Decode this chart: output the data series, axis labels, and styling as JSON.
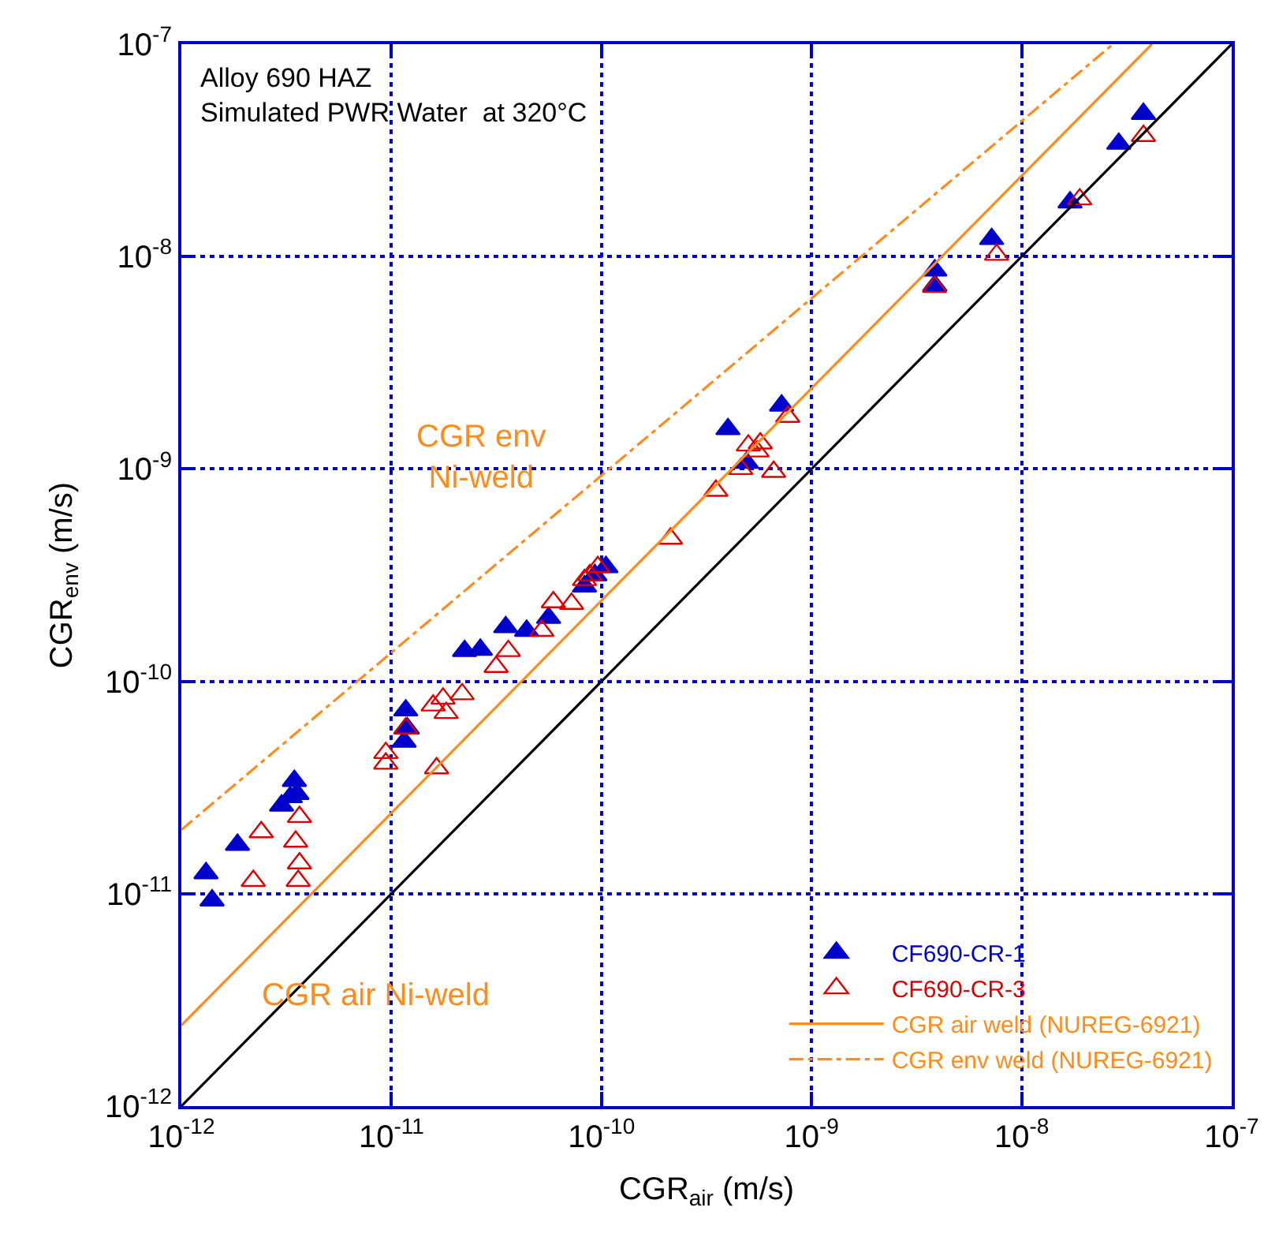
{
  "chart_data": {
    "type": "scatter",
    "xlabel": "CGR$_{air}$ (m/s)",
    "ylabel": "CGR$_{env}$ (m/s)",
    "log": "xy",
    "xlim": [
      1e-12,
      1e-07
    ],
    "ylim": [
      1e-12,
      1e-07
    ],
    "xticks": [
      {
        "value": 1e-12,
        "label": "10$^{-12}$"
      },
      {
        "value": 1e-11,
        "label": "10$^{-11}$"
      },
      {
        "value": 1e-10,
        "label": "10$^{-10}$"
      },
      {
        "value": 1e-09,
        "label": "10$^{-9}$"
      },
      {
        "value": 1e-08,
        "label": "10$^{-8}$"
      },
      {
        "value": 1e-07,
        "label": "10$^{-7}$"
      }
    ],
    "yticks": [
      {
        "value": 1e-12,
        "label": "10$^{-12}$"
      },
      {
        "value": 1e-11,
        "label": "10$^{-11}$"
      },
      {
        "value": 1e-10,
        "label": "10$^{-10}$"
      },
      {
        "value": 1e-09,
        "label": "10$^{-9}$"
      },
      {
        "value": 1e-08,
        "label": "10$^{-8}$"
      },
      {
        "value": 1e-07,
        "label": "10$^{-7}$"
      }
    ],
    "grid": true,
    "legend": "bottom right",
    "series": [
      {
        "name": "CF690-CR-1",
        "marker": "triangle",
        "color": "#0000cc",
        "x": [
          1.31e-12,
          1.4e-12,
          1.85e-12,
          3e-12,
          3.3e-12,
          3.45e-12,
          3.55e-12,
          1.17e-11,
          1.19e-11,
          1.15e-11,
          2.23e-11,
          2.65e-11,
          3.5e-11,
          4.4e-11,
          5.6e-11,
          8.3e-11,
          9.3e-11,
          1.05e-10,
          4e-10,
          4.9e-10,
          7.2e-10,
          3.86e-09,
          3.86e-09,
          7.2e-09,
          1.7e-08,
          2.9e-08,
          3.8e-08
        ],
        "values": [
          1.25e-11,
          9.3e-12,
          1.7e-11,
          2.6e-11,
          2.85e-11,
          3.4e-11,
          2.95e-11,
          7.3e-11,
          6e-11,
          5.2e-11,
          1.39e-10,
          1.41e-10,
          1.8e-10,
          1.73e-10,
          1.99e-10,
          2.8e-10,
          3.16e-10,
          3.45e-10,
          1.54e-09,
          1.07e-09,
          1.99e-09,
          8.6e-09,
          7.3e-09,
          1.21e-08,
          1.8e-08,
          3.4e-08,
          4.7e-08
        ]
      },
      {
        "name": "CF690-CR-3",
        "marker": "triangle-open",
        "color": "#dd0000",
        "x": [
          2.2e-12,
          2.4e-12,
          3.65e-12,
          3.5e-12,
          3.65e-12,
          3.6e-12,
          9.4e-12,
          9.4e-12,
          1.64e-11,
          1.58e-11,
          1.76e-11,
          1.82e-11,
          2.17e-11,
          1.17e-11,
          3.15e-11,
          3.6e-11,
          5.2e-11,
          5.9e-11,
          7.2e-11,
          8.3e-11,
          8.8e-11,
          9.6e-11,
          2.13e-10,
          3.5e-10,
          4.6e-10,
          5e-10,
          5.7e-10,
          5.5e-10,
          6.6e-10,
          7.7e-10,
          3.85e-09,
          7.6e-09,
          1.89e-08,
          3.8e-08
        ],
        "values": [
          1.15e-11,
          1.95e-11,
          2.3e-11,
          1.76e-11,
          1.39e-11,
          1.15e-11,
          4.6e-11,
          4.1e-11,
          3.9e-11,
          7.7e-11,
          8.3e-11,
          7.1e-11,
          8.7e-11,
          6e-11,
          1.17e-10,
          1.39e-10,
          1.73e-10,
          2.36e-10,
          2.32e-10,
          3e-10,
          3.16e-10,
          3.45e-10,
          4.7e-10,
          7.9e-10,
          1e-09,
          1.29e-09,
          1.32e-09,
          1.21e-09,
          9.7e-10,
          1.76e-09,
          7.2e-09,
          1.02e-08,
          1.86e-08,
          3.7e-08
        ]
      },
      {
        "name": "CGR air weld (NUREG-6921)",
        "type": "line",
        "line_style": "solid",
        "color": "#ff8c1a",
        "x": [
          1e-12,
          4.17e-08
        ],
        "values": [
          2.4e-12,
          1e-07
        ]
      },
      {
        "name": "CGR env weld (NUREG-6921)",
        "type": "line",
        "line_style": "dashdot",
        "color": "#ff8c1a",
        "x": [
          1e-12,
          2.72e-08
        ],
        "values": [
          2e-11,
          1e-07
        ]
      },
      {
        "type": "line",
        "line_style": "solid",
        "color": "#000000",
        "x": [
          1e-12,
          1e-07
        ],
        "values": [
          1e-12,
          1e-07
        ]
      }
    ],
    "annotations": [
      "Alloy 690 HAZ\nSimulated PWR Water  at 320°C",
      "CGR env\nNi-weld",
      "CGR air Ni-weld"
    ]
  }
}
